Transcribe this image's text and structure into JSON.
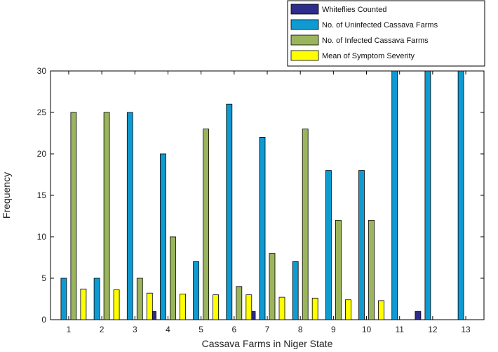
{
  "chart_data": {
    "type": "bar",
    "xlabel": "Cassava Farms in Niger State",
    "ylabel": "Frequency",
    "categories": [
      "1",
      "2",
      "3",
      "4",
      "5",
      "6",
      "7",
      "8",
      "9",
      "10",
      "11",
      "12",
      "13"
    ],
    "ylim": [
      0,
      30
    ],
    "yticks": [
      "0",
      "5",
      "10",
      "15",
      "20",
      "25",
      "30"
    ],
    "grid": false,
    "legend_position": "top-right (outside plot)",
    "series": [
      {
        "name": "Whiteflies Counted",
        "color": "#2e2c8c",
        "values": [
          0,
          0,
          0,
          1,
          0,
          0,
          1,
          0,
          0,
          0,
          0,
          1,
          0
        ]
      },
      {
        "name": "No. of Uninfected Cassava Farms",
        "color": "#0f9ad2",
        "values": [
          5,
          5,
          25,
          20,
          7,
          26,
          22,
          7,
          18,
          18,
          30,
          30,
          30
        ]
      },
      {
        "name": "No. of Infected Cassava Farms",
        "color": "#9bb55c",
        "values": [
          25,
          25,
          5,
          10,
          23,
          4,
          8,
          23,
          12,
          12,
          0,
          0,
          0
        ]
      },
      {
        "name": "Mean of Symptom Severity",
        "color": "#ffff00",
        "values": [
          3.7,
          3.6,
          3.2,
          3.1,
          3.0,
          3.0,
          2.7,
          2.6,
          2.4,
          2.3,
          0,
          0,
          0
        ]
      }
    ]
  }
}
